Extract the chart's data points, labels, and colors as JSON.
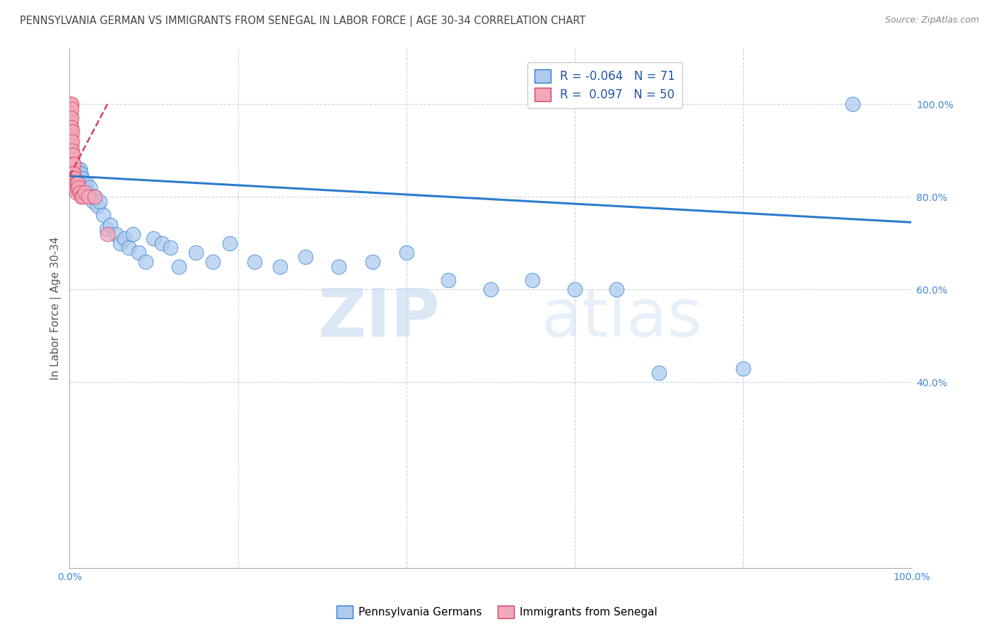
{
  "title": "PENNSYLVANIA GERMAN VS IMMIGRANTS FROM SENEGAL IN LABOR FORCE | AGE 30-34 CORRELATION CHART",
  "source": "Source: ZipAtlas.com",
  "ylabel": "In Labor Force | Age 30-34",
  "legend_label1": "Pennsylvania Germans",
  "legend_label2": "Immigrants from Senegal",
  "R1": -0.064,
  "N1": 71,
  "R2": 0.097,
  "N2": 50,
  "color1": "#aecbee",
  "color2": "#f2a8bc",
  "trend_color1": "#2b7bcd",
  "trend_color2": "#d44060",
  "bg_color": "#ffffff",
  "grid_color": "#c8d4e8",
  "blue_x": [
    0.001,
    0.001,
    0.002,
    0.002,
    0.003,
    0.003,
    0.003,
    0.004,
    0.004,
    0.004,
    0.005,
    0.005,
    0.005,
    0.005,
    0.006,
    0.006,
    0.006,
    0.007,
    0.007,
    0.008,
    0.008,
    0.009,
    0.01,
    0.01,
    0.011,
    0.012,
    0.013,
    0.014,
    0.015,
    0.016,
    0.017,
    0.018,
    0.02,
    0.022,
    0.024,
    0.026,
    0.028,
    0.03,
    0.033,
    0.036,
    0.04,
    0.044,
    0.048,
    0.055,
    0.06,
    0.065,
    0.07,
    0.075,
    0.082,
    0.09,
    0.1,
    0.11,
    0.12,
    0.13,
    0.15,
    0.17,
    0.19,
    0.22,
    0.25,
    0.28,
    0.32,
    0.36,
    0.4,
    0.45,
    0.5,
    0.55,
    0.6,
    0.65,
    0.7,
    0.8,
    0.93
  ],
  "blue_y": [
    0.86,
    0.84,
    0.85,
    0.83,
    0.88,
    0.86,
    0.84,
    0.87,
    0.85,
    0.84,
    0.86,
    0.84,
    0.83,
    0.82,
    0.85,
    0.84,
    0.83,
    0.86,
    0.84,
    0.85,
    0.83,
    0.84,
    0.86,
    0.85,
    0.84,
    0.86,
    0.85,
    0.83,
    0.84,
    0.83,
    0.81,
    0.82,
    0.83,
    0.81,
    0.82,
    0.8,
    0.79,
    0.8,
    0.78,
    0.79,
    0.76,
    0.73,
    0.74,
    0.72,
    0.7,
    0.71,
    0.69,
    0.72,
    0.68,
    0.66,
    0.71,
    0.7,
    0.69,
    0.65,
    0.68,
    0.66,
    0.7,
    0.66,
    0.65,
    0.67,
    0.65,
    0.66,
    0.68,
    0.62,
    0.6,
    0.62,
    0.6,
    0.6,
    0.42,
    0.43,
    1.0
  ],
  "pink_x": [
    0.001,
    0.001,
    0.001,
    0.001,
    0.001,
    0.001,
    0.001,
    0.001,
    0.001,
    0.001,
    0.002,
    0.002,
    0.002,
    0.002,
    0.002,
    0.002,
    0.002,
    0.003,
    0.003,
    0.003,
    0.003,
    0.003,
    0.003,
    0.003,
    0.004,
    0.004,
    0.004,
    0.004,
    0.004,
    0.004,
    0.005,
    0.005,
    0.005,
    0.005,
    0.006,
    0.006,
    0.007,
    0.007,
    0.008,
    0.008,
    0.009,
    0.01,
    0.011,
    0.012,
    0.014,
    0.016,
    0.018,
    0.022,
    0.03,
    0.045
  ],
  "pink_y": [
    1.0,
    1.0,
    0.98,
    0.97,
    0.96,
    0.95,
    0.94,
    0.93,
    0.92,
    0.91,
    1.0,
    0.99,
    0.97,
    0.95,
    0.93,
    0.91,
    0.89,
    0.94,
    0.92,
    0.9,
    0.88,
    0.87,
    0.86,
    0.85,
    0.89,
    0.87,
    0.85,
    0.84,
    0.83,
    0.82,
    0.87,
    0.85,
    0.84,
    0.83,
    0.84,
    0.82,
    0.83,
    0.82,
    0.83,
    0.81,
    0.82,
    0.83,
    0.82,
    0.81,
    0.8,
    0.8,
    0.81,
    0.8,
    0.8,
    0.72
  ],
  "watermark_zip": "ZIP",
  "watermark_atlas": "atlas",
  "xlim": [
    0.0,
    1.0
  ],
  "ylim": [
    0.0,
    1.12
  ],
  "xticks": [
    0.0,
    0.2,
    0.4,
    0.6,
    0.8,
    1.0
  ],
  "xticklabels": [
    "0.0%",
    "",
    "",
    "",
    "",
    "100.0%"
  ],
  "yticks_right": [
    0.4,
    0.6,
    0.8,
    1.0
  ],
  "yticklabels_right": [
    "40.0%",
    "60.0%",
    "80.0%",
    "100.0%"
  ],
  "trend1_x0": 0.0,
  "trend1_y0": 0.845,
  "trend1_x1": 1.0,
  "trend1_y1": 0.745,
  "trend2_x0": 0.0,
  "trend2_y0": 0.845,
  "trend2_x1": 0.045,
  "trend2_y1": 1.0
}
